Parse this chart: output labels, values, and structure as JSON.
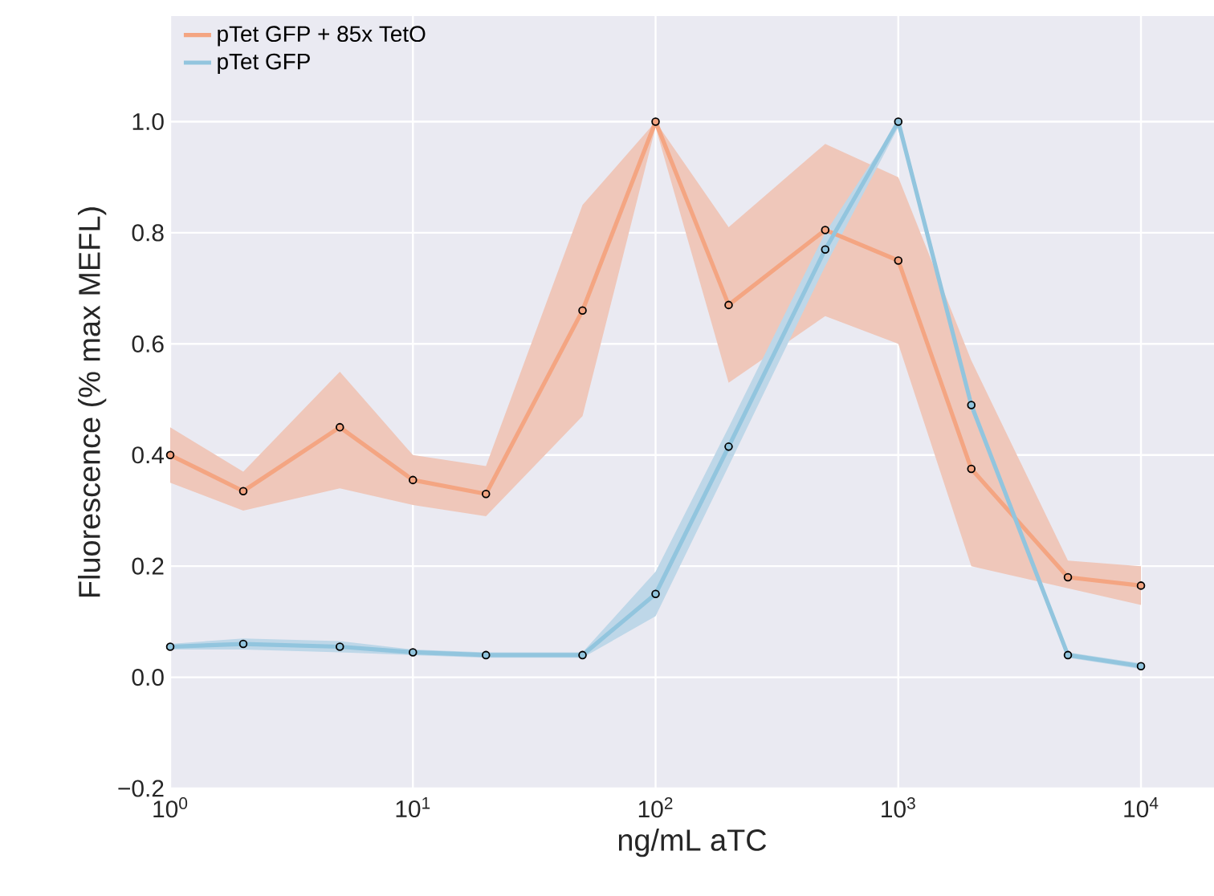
{
  "chart_data": {
    "type": "line",
    "xlabel": "ng/mL aTC",
    "ylabel": "Fluorescence (% max MEFL)",
    "x": [
      1,
      2,
      5,
      10,
      20,
      50,
      100,
      200,
      500,
      1000,
      2000,
      5000,
      10000
    ],
    "series": [
      {
        "name": "pTet GFP + 85x TetO",
        "color": "#f4a582",
        "values": [
          0.4,
          0.335,
          0.45,
          0.355,
          0.33,
          0.66,
          1.0,
          0.67,
          0.805,
          0.75,
          0.375,
          0.18,
          0.165
        ],
        "lower": [
          0.35,
          0.3,
          0.34,
          0.31,
          0.29,
          0.47,
          0.99,
          0.53,
          0.65,
          0.6,
          0.2,
          0.16,
          0.13
        ],
        "upper": [
          0.45,
          0.37,
          0.55,
          0.4,
          0.38,
          0.85,
          1.0,
          0.81,
          0.96,
          0.9,
          0.57,
          0.21,
          0.2
        ]
      },
      {
        "name": "pTet GFP",
        "color": "#92c5de",
        "values": [
          0.055,
          0.06,
          0.055,
          0.045,
          0.04,
          0.04,
          0.15,
          0.415,
          0.77,
          1.0,
          0.49,
          0.04,
          0.02
        ],
        "lower": [
          0.05,
          0.05,
          0.045,
          0.04,
          0.035,
          0.035,
          0.11,
          0.38,
          0.74,
          0.99,
          0.48,
          0.035,
          0.015
        ],
        "upper": [
          0.06,
          0.07,
          0.065,
          0.05,
          0.045,
          0.045,
          0.19,
          0.45,
          0.8,
          1.0,
          0.5,
          0.045,
          0.025
        ]
      }
    ],
    "xlim": [
      1,
      20000
    ],
    "ylim": [
      -0.2,
      1.19
    ],
    "xticks": [
      {
        "value": 1,
        "label": "10$^{0}$"
      },
      {
        "value": 10,
        "label": "10$^{1}$"
      },
      {
        "value": 100,
        "label": "10$^{2}$"
      },
      {
        "value": 1000,
        "label": "10$^{3}$"
      },
      {
        "value": 10000,
        "label": "10$^{4}$"
      }
    ],
    "yticks": [
      {
        "value": -0.2,
        "label": "−0.2"
      },
      {
        "value": 0,
        "label": "0.0"
      },
      {
        "value": 0.2,
        "label": "0.2"
      },
      {
        "value": 0.4,
        "label": "0.4"
      },
      {
        "value": 0.6,
        "label": "0.6"
      },
      {
        "value": 0.8,
        "label": "0.8"
      },
      {
        "value": 1.0,
        "label": "1.0"
      }
    ],
    "log": "x",
    "grid": true,
    "legend": "top left",
    "marker": "circle",
    "line_style": "solid"
  }
}
